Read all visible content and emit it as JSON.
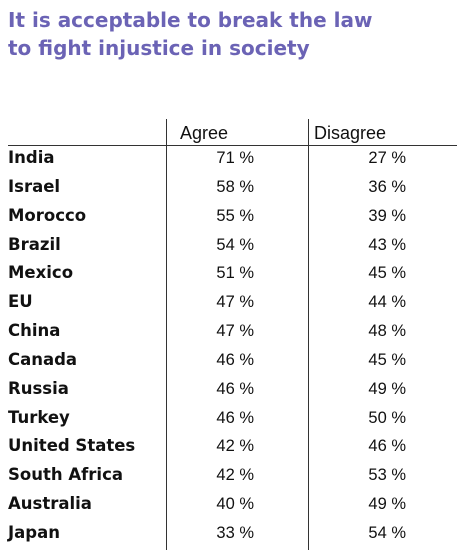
{
  "title_lines": [
    "It is acceptable to break the law",
    "to fight injustice in society"
  ],
  "colors": {
    "title": "#6b63b5",
    "text": "#111111",
    "rules": "#333333"
  },
  "chart_data": {
    "type": "table",
    "title": "It is acceptable to break the law to fight injustice in society",
    "columns": [
      "Agree",
      "Disagree"
    ],
    "unit": "%",
    "rows": [
      {
        "country": "India",
        "agree": "71 %",
        "disagree": "27 %",
        "agree_value": 71,
        "disagree_value": 27
      },
      {
        "country": "Israel",
        "agree": "58 %",
        "disagree": "36 %",
        "agree_value": 58,
        "disagree_value": 36
      },
      {
        "country": "Morocco",
        "agree": "55 %",
        "disagree": "39 %",
        "agree_value": 55,
        "disagree_value": 39
      },
      {
        "country": "Brazil",
        "agree": "54 %",
        "disagree": "43 %",
        "agree_value": 54,
        "disagree_value": 43
      },
      {
        "country": "Mexico",
        "agree": "51 %",
        "disagree": "45 %",
        "agree_value": 51,
        "disagree_value": 45
      },
      {
        "country": "EU",
        "agree": "47 %",
        "disagree": "44 %",
        "agree_value": 47,
        "disagree_value": 44
      },
      {
        "country": "China",
        "agree": "47 %",
        "disagree": "48 %",
        "agree_value": 47,
        "disagree_value": 48
      },
      {
        "country": "Canada",
        "agree": "46 %",
        "disagree": "45 %",
        "agree_value": 46,
        "disagree_value": 45
      },
      {
        "country": "Russia",
        "agree": "46 %",
        "disagree": "49 %",
        "agree_value": 46,
        "disagree_value": 49
      },
      {
        "country": "Turkey",
        "agree": "46 %",
        "disagree": "50 %",
        "agree_value": 46,
        "disagree_value": 50
      },
      {
        "country": "United States",
        "agree": "42 %",
        "disagree": "46 %",
        "agree_value": 42,
        "disagree_value": 46
      },
      {
        "country": "South Africa",
        "agree": "42 %",
        "disagree": "53 %",
        "agree_value": 42,
        "disagree_value": 53
      },
      {
        "country": "Australia",
        "agree": "40 %",
        "disagree": "49 %",
        "agree_value": 40,
        "disagree_value": 49
      },
      {
        "country": "Japan",
        "agree": "33 %",
        "disagree": "54 %",
        "agree_value": 33,
        "disagree_value": 54
      }
    ]
  }
}
